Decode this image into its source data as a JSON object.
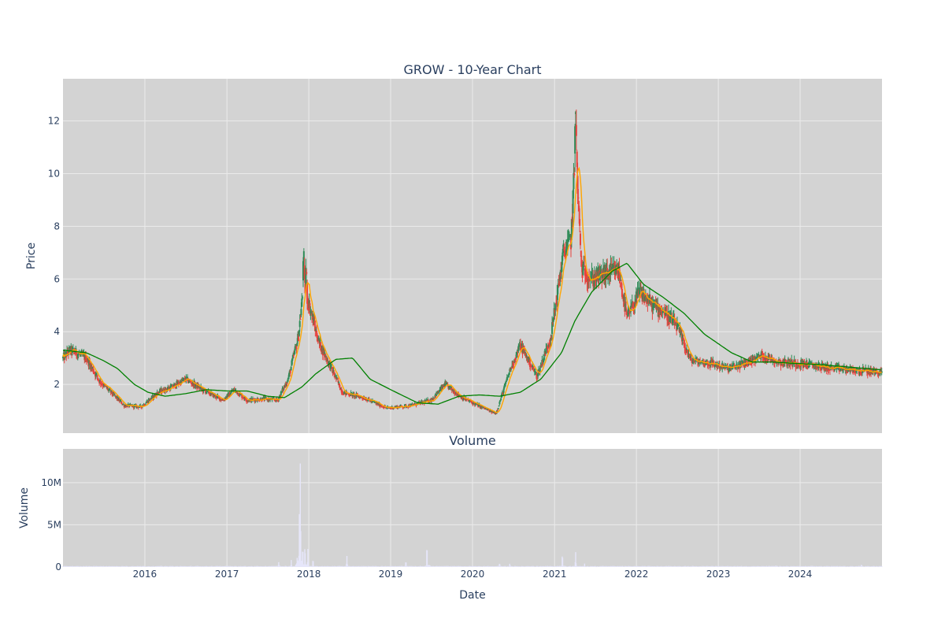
{
  "chart_data": [
    {
      "type": "candlestick",
      "title": "GROW - 10-Year Chart",
      "ylabel": "Price",
      "ylim": [
        0.15,
        13.6
      ],
      "y_ticks": [
        "2",
        "4",
        "6",
        "8",
        "10",
        "12"
      ],
      "grid": true,
      "colors": {
        "plot_bg": "#d3d3d3",
        "grid": "#ebebeb",
        "up": "#2e8b57",
        "down": "#e8413c",
        "ma_short": "#ffa500",
        "ma_long": "#008000"
      },
      "series": [
        {
          "type": "candlestick",
          "key_points": [
            [
              "2015-01-02",
              3.0
            ],
            [
              "2015-02-01",
              3.3
            ],
            [
              "2015-03-01",
              3.2
            ],
            [
              "2015-04-15",
              3.0
            ],
            [
              "2015-06-15",
              2.1
            ],
            [
              "2015-08-15",
              1.6
            ],
            [
              "2015-10-01",
              1.2
            ],
            [
              "2015-12-15",
              1.15
            ],
            [
              "2016-03-01",
              1.7
            ],
            [
              "2016-05-01",
              1.9
            ],
            [
              "2016-07-01",
              2.2
            ],
            [
              "2016-09-15",
              1.8
            ],
            [
              "2016-12-15",
              1.4
            ],
            [
              "2017-02-01",
              1.8
            ],
            [
              "2017-04-01",
              1.4
            ],
            [
              "2017-06-15",
              1.45
            ],
            [
              "2017-08-15",
              1.4
            ],
            [
              "2017-10-01",
              2.2
            ],
            [
              "2017-11-15",
              3.8
            ],
            [
              "2017-12-10",
              5.8
            ],
            [
              "2017-12-28",
              5.2
            ],
            [
              "2018-02-15",
              3.6
            ],
            [
              "2018-04-01",
              2.8
            ],
            [
              "2018-06-01",
              1.7
            ],
            [
              "2018-09-01",
              1.5
            ],
            [
              "2018-12-15",
              1.1
            ],
            [
              "2019-04-01",
              1.2
            ],
            [
              "2019-07-01",
              1.4
            ],
            [
              "2019-09-01",
              2.0
            ],
            [
              "2019-11-15",
              1.5
            ],
            [
              "2020-03-15",
              1.0
            ],
            [
              "2020-04-15",
              0.9
            ],
            [
              "2020-06-15",
              2.5
            ],
            [
              "2020-08-01",
              3.5
            ],
            [
              "2020-10-15",
              2.3
            ],
            [
              "2020-12-15",
              3.8
            ],
            [
              "2021-02-10",
              7.0
            ],
            [
              "2021-03-15",
              7.5
            ],
            [
              "2021-04-05",
              11.0
            ],
            [
              "2021-05-01",
              6.4
            ],
            [
              "2021-06-15",
              6.0
            ],
            [
              "2021-08-15",
              6.2
            ],
            [
              "2021-10-15",
              6.3
            ],
            [
              "2021-11-20",
              4.5
            ],
            [
              "2022-01-15",
              5.5
            ],
            [
              "2022-03-15",
              5.0
            ],
            [
              "2022-05-01",
              4.8
            ],
            [
              "2022-07-01",
              4.2
            ],
            [
              "2022-09-01",
              2.9
            ],
            [
              "2022-12-01",
              2.8
            ],
            [
              "2023-02-15",
              2.6
            ],
            [
              "2023-05-01",
              2.8
            ],
            [
              "2023-07-15",
              3.1
            ],
            [
              "2023-10-01",
              2.85
            ],
            [
              "2024-01-01",
              2.8
            ],
            [
              "2024-06-01",
              2.6
            ],
            [
              "2024-12-31",
              2.45
            ]
          ]
        },
        {
          "type": "line",
          "key_points": [
            [
              "2015-01-02",
              3.3
            ],
            [
              "2015-04-15",
              3.2
            ],
            [
              "2015-07-01",
              2.9
            ],
            [
              "2015-09-01",
              2.6
            ],
            [
              "2015-11-15",
              2.0
            ],
            [
              "2016-01-15",
              1.7
            ],
            [
              "2016-04-01",
              1.55
            ],
            [
              "2016-07-01",
              1.65
            ],
            [
              "2016-10-01",
              1.8
            ],
            [
              "2017-01-01",
              1.75
            ],
            [
              "2017-04-01",
              1.75
            ],
            [
              "2017-07-01",
              1.55
            ],
            [
              "2017-09-15",
              1.5
            ],
            [
              "2017-12-01",
              1.9
            ],
            [
              "2018-02-01",
              2.4
            ],
            [
              "2018-05-01",
              2.95
            ],
            [
              "2018-07-15",
              3.0
            ],
            [
              "2018-10-01",
              2.2
            ],
            [
              "2019-01-01",
              1.8
            ],
            [
              "2019-05-01",
              1.3
            ],
            [
              "2019-08-01",
              1.25
            ],
            [
              "2019-11-01",
              1.55
            ],
            [
              "2020-02-01",
              1.6
            ],
            [
              "2020-05-01",
              1.55
            ],
            [
              "2020-08-01",
              1.7
            ],
            [
              "2020-11-01",
              2.2
            ],
            [
              "2021-02-01",
              3.2
            ],
            [
              "2021-04-01",
              4.4
            ],
            [
              "2021-06-15",
              5.5
            ],
            [
              "2021-09-15",
              6.3
            ],
            [
              "2021-11-20",
              6.6
            ],
            [
              "2022-02-01",
              5.8
            ],
            [
              "2022-05-01",
              5.3
            ],
            [
              "2022-08-01",
              4.7
            ],
            [
              "2022-11-01",
              3.9
            ],
            [
              "2023-03-01",
              3.2
            ],
            [
              "2023-06-01",
              2.85
            ],
            [
              "2023-09-01",
              2.85
            ],
            [
              "2023-12-01",
              2.8
            ],
            [
              "2024-04-01",
              2.75
            ],
            [
              "2024-12-31",
              2.55
            ]
          ]
        }
      ]
    },
    {
      "type": "bar",
      "title": "Volume",
      "xlabel": "Date",
      "ylabel": "Volume",
      "ylim": [
        0,
        14000000
      ],
      "y_ticks": [
        "0",
        "5M",
        "10M"
      ],
      "x_ticks": [
        "2016",
        "2017",
        "2018",
        "2019",
        "2020",
        "2021",
        "2022",
        "2023",
        "2024"
      ],
      "xlim": [
        "2015-01-01",
        "2024-12-31"
      ],
      "colors": {
        "bar": "#e6e6fa"
      },
      "key_points": [
        [
          "2015-06-01",
          150000
        ],
        [
          "2016-06-01",
          120000
        ],
        [
          "2017-06-01",
          100000
        ],
        [
          "2017-08-20",
          800000
        ],
        [
          "2017-10-15",
          900000
        ],
        [
          "2017-11-10",
          1700000
        ],
        [
          "2017-11-20",
          6500000
        ],
        [
          "2017-11-24",
          13500000
        ],
        [
          "2017-12-05",
          4000000
        ],
        [
          "2017-12-15",
          3500000
        ],
        [
          "2017-12-28",
          2500000
        ],
        [
          "2018-01-20",
          1200000
        ],
        [
          "2018-06-20",
          1500000
        ],
        [
          "2019-03-10",
          1200000
        ],
        [
          "2019-06-12",
          3500000
        ],
        [
          "2020-05-01",
          700000
        ],
        [
          "2020-06-15",
          600000
        ],
        [
          "2021-02-05",
          2200000
        ],
        [
          "2021-04-05",
          1800000
        ],
        [
          "2021-05-15",
          500000
        ],
        [
          "2023-09-15",
          300000
        ],
        [
          "2024-10-01",
          400000
        ]
      ]
    }
  ]
}
